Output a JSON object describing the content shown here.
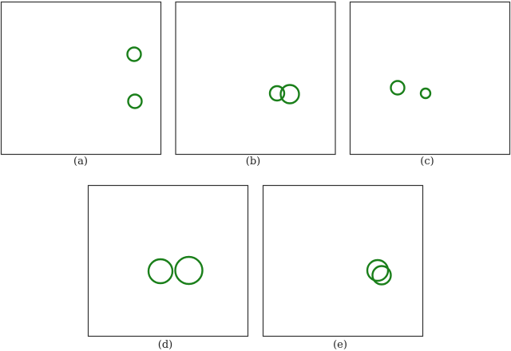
{
  "figure": {
    "stroke_color": "#1a7f1a",
    "frame_color": "#333333",
    "panels": [
      {
        "caption": "(a)",
        "circle_count": 2
      },
      {
        "caption": "(b)",
        "circle_count": 2
      },
      {
        "caption": "(c)",
        "circle_count": 2
      },
      {
        "caption": "(d)",
        "circle_count": 2
      },
      {
        "caption": "(e)",
        "circle_count": 2
      }
    ]
  }
}
